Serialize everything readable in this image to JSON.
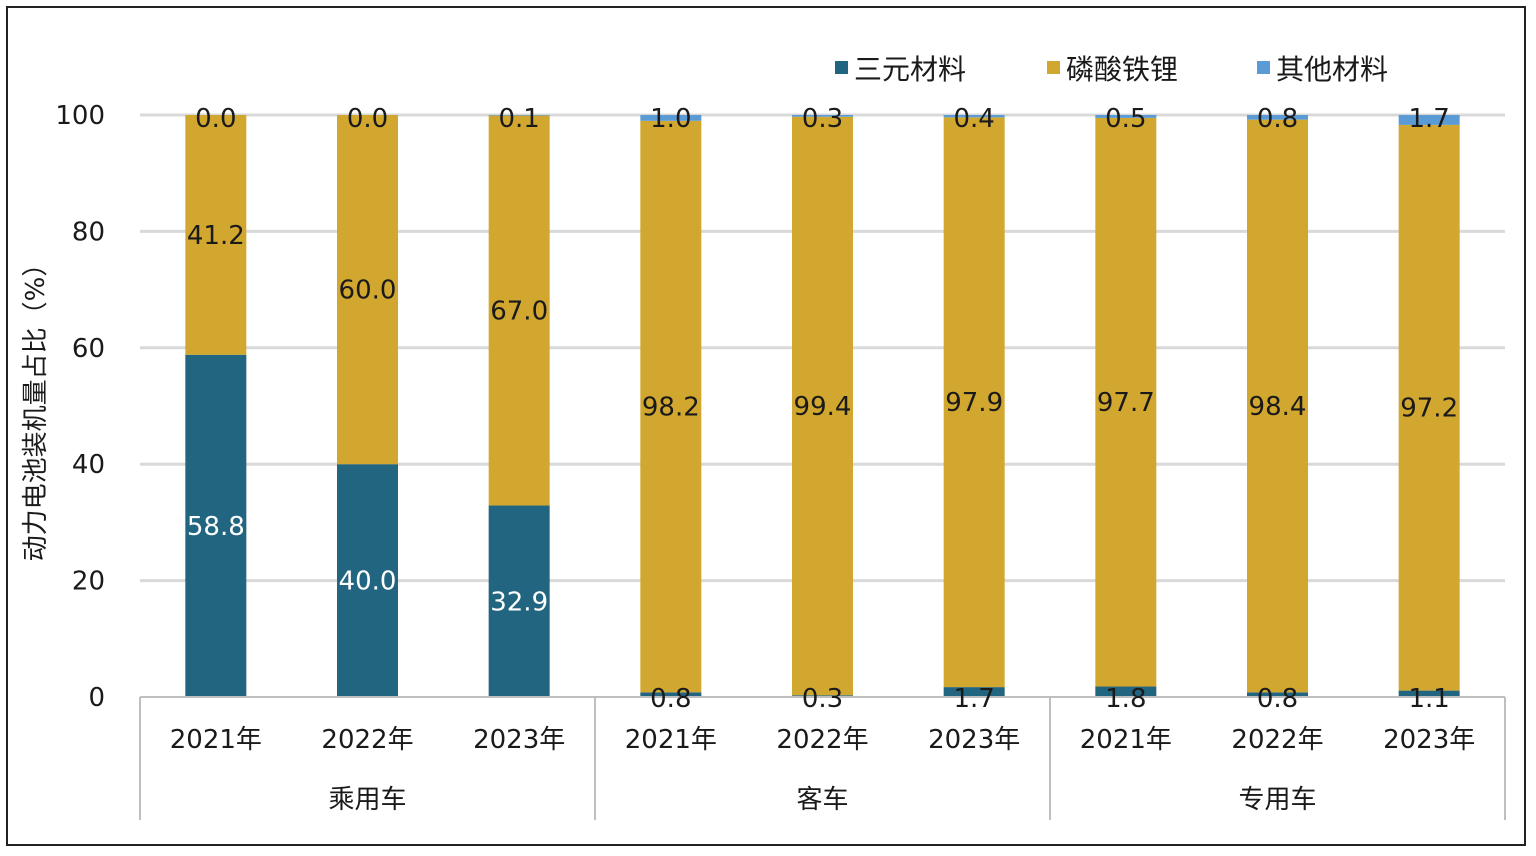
{
  "chart_data": {
    "type": "bar",
    "stacked": true,
    "ylabel": "动力电池装机量占比（%）",
    "ylim": [
      0,
      100
    ],
    "yticks": [
      0,
      20,
      40,
      60,
      80,
      100
    ],
    "grid": true,
    "legend_position": "top-right",
    "groups": [
      {
        "label": "乘用车",
        "categories": [
          "2021年",
          "2022年",
          "2023年"
        ]
      },
      {
        "label": "客车",
        "categories": [
          "2021年",
          "2022年",
          "2023年"
        ]
      },
      {
        "label": "专用车",
        "categories": [
          "2021年",
          "2022年",
          "2023年"
        ]
      }
    ],
    "series": [
      {
        "name": "三元材料",
        "color": "#226580",
        "label_color": "#ffffff",
        "values": [
          58.8,
          40.0,
          32.9,
          0.8,
          0.3,
          1.7,
          1.8,
          0.8,
          1.1
        ],
        "labels": [
          "58.8",
          "40.0",
          "32.9",
          "0.8",
          "0.3",
          "1.7",
          "1.8",
          "0.8",
          "1.1"
        ]
      },
      {
        "name": "磷酸铁锂",
        "color": "#d2a72f",
        "label_color": "#1a1a1a",
        "values": [
          41.2,
          60.0,
          67.0,
          98.2,
          99.4,
          97.9,
          97.7,
          98.4,
          97.2
        ],
        "labels": [
          "41.2",
          "60.0",
          "67.0",
          "98.2",
          "99.4",
          "97.9",
          "97.7",
          "98.4",
          "97.2"
        ]
      },
      {
        "name": "其他材料",
        "color": "#5b9bd5",
        "label_color": "#1a1a1a",
        "values": [
          0.0,
          0.0,
          0.1,
          1.0,
          0.3,
          0.4,
          0.5,
          0.8,
          1.7
        ],
        "labels": [
          "0.0",
          "0.0",
          "0.1",
          "1.0",
          "0.3",
          "0.4",
          "0.5",
          "0.8",
          "1.7"
        ]
      }
    ]
  }
}
